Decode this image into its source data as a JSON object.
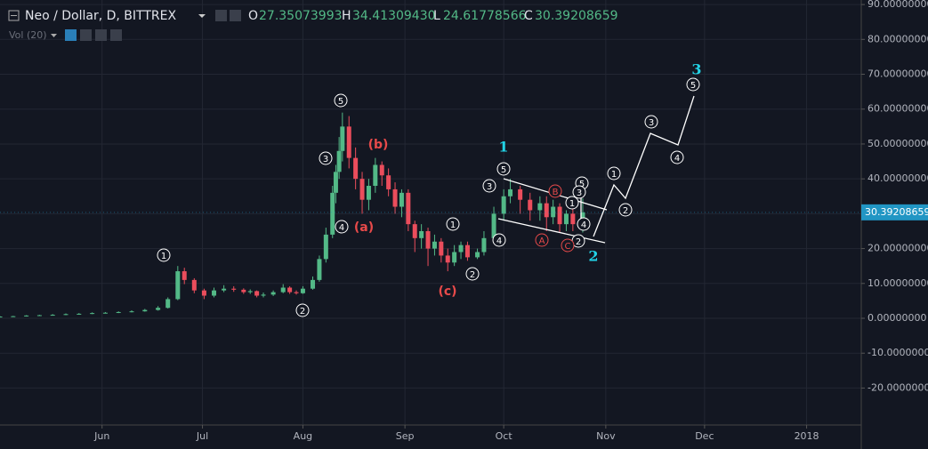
{
  "header": {
    "symbol": "Neo / Dollar, D, BITTREX",
    "o_label": "O",
    "o_value": "27.35073993",
    "h_label": "H",
    "h_value": "34.41309430",
    "l_label": "L",
    "l_value": "24.61778566",
    "c_label": "C",
    "c_value": "30.39208659",
    "volume": "Vol (20)"
  },
  "chart_data": {
    "type": "candlestick",
    "x": [
      0,
      4,
      8,
      12,
      16,
      20,
      24,
      28,
      32,
      36,
      40,
      44,
      48,
      51,
      54,
      56,
      59,
      62,
      65,
      68,
      71,
      74,
      76,
      78,
      80,
      83,
      86,
      88,
      90,
      92,
      95,
      97,
      99,
      101,
      102,
      103,
      104,
      106,
      108,
      110,
      112,
      114,
      116,
      118,
      120,
      122,
      124,
      126,
      128,
      130,
      132,
      134,
      136,
      138,
      140,
      142,
      145,
      147,
      150,
      153,
      155,
      158,
      161,
      164,
      166,
      168,
      170,
      172,
      174,
      177
    ],
    "open": [
      0.4,
      0.5,
      0.6,
      0.8,
      0.9,
      1.0,
      1.2,
      1.3,
      1.5,
      1.6,
      1.8,
      2.0,
      2.4,
      3.0,
      5.5,
      13.5,
      11,
      8,
      6.5,
      8,
      8.5,
      8.2,
      7.5,
      7.8,
      6.5,
      6.8,
      7.5,
      8.8,
      7.5,
      7.2,
      8.5,
      11,
      17,
      24,
      36,
      42,
      48,
      55,
      46,
      40,
      34,
      38,
      44,
      41,
      37,
      32,
      36,
      27,
      23,
      25,
      20,
      22,
      18,
      16,
      19,
      21,
      17.5,
      19,
      23,
      30,
      35,
      37,
      34,
      31,
      33,
      29,
      32,
      27,
      30,
      27.35073993
    ],
    "high": [
      0.6,
      0.7,
      0.9,
      1.0,
      1.2,
      1.4,
      1.5,
      1.7,
      1.8,
      2.0,
      2.3,
      2.7,
      3.5,
      6.0,
      15,
      14.5,
      11.5,
      8.5,
      8.8,
      9.5,
      9.2,
      8.6,
      8.3,
      8,
      7.4,
      8,
      9.8,
      9.2,
      8,
      9.2,
      12,
      18,
      26,
      38,
      44,
      52,
      59,
      58,
      49,
      42,
      40,
      46,
      45,
      43,
      39,
      37,
      37,
      28,
      27,
      26,
      24,
      23,
      20,
      21,
      22,
      22,
      20,
      25,
      32,
      37,
      40,
      38,
      36,
      35,
      35,
      34,
      33,
      31,
      32,
      34.4130943
    ],
    "low": [
      0.3,
      0.4,
      0.5,
      0.7,
      0.8,
      0.9,
      1.1,
      1.2,
      1.4,
      1.5,
      1.7,
      1.9,
      2.2,
      2.8,
      5.2,
      9.8,
      7.2,
      5.5,
      6,
      7.5,
      7.6,
      7,
      7,
      6,
      6,
      6.4,
      7.2,
      7,
      6.8,
      7,
      8.2,
      10.5,
      16,
      23,
      33,
      40,
      45,
      43,
      37,
      30,
      31,
      36,
      38,
      35,
      30,
      29,
      25,
      19,
      20,
      15,
      18,
      16,
      13.5,
      15,
      17,
      16.5,
      17,
      18,
      22,
      28,
      33,
      30,
      28,
      28,
      25,
      27,
      24.6,
      25,
      25,
      24.61778566
    ],
    "close": [
      0.5,
      0.6,
      0.8,
      0.9,
      1.0,
      1.2,
      1.3,
      1.5,
      1.6,
      1.8,
      2.0,
      2.4,
      3.0,
      5.5,
      13.5,
      11,
      8,
      6.5,
      8,
      8.5,
      8.2,
      7.5,
      7.8,
      6.5,
      6.8,
      7.5,
      8.8,
      7.5,
      7.2,
      8.5,
      11,
      17,
      24,
      36,
      42,
      48,
      55,
      46,
      40,
      34,
      38,
      44,
      41,
      37,
      32,
      36,
      27,
      23,
      25,
      20,
      22,
      18,
      16,
      19,
      21,
      17.5,
      19,
      23,
      30,
      35,
      37,
      34,
      31,
      33,
      29,
      32,
      27,
      30,
      27,
      30.39208659
    ],
    "up_color": "#53b987",
    "down_color": "#eb4d5c",
    "xlim": [
      0,
      261.6
    ],
    "xticks": [
      {
        "value": 31,
        "label": "Jun"
      },
      {
        "value": 61.5,
        "label": "Jul"
      },
      {
        "value": 92,
        "label": "Aug"
      },
      {
        "value": 123,
        "label": "Sep"
      },
      {
        "value": 153,
        "label": "Oct"
      },
      {
        "value": 184,
        "label": "Nov"
      },
      {
        "value": 214,
        "label": "Dec"
      },
      {
        "value": 245,
        "label": "2018"
      }
    ],
    "ylim": [
      -30.6,
      91.3
    ],
    "yticks": [
      {
        "value": -20,
        "label": "-20.00000000"
      },
      {
        "value": -10,
        "label": "-10.00000000"
      },
      {
        "value": 0,
        "label": "0.00000000"
      },
      {
        "value": 10,
        "label": "10.00000000"
      },
      {
        "value": 20,
        "label": "20.00000000"
      },
      {
        "value": 30,
        "label": "30.00000000"
      },
      {
        "value": 40,
        "label": "40.00000000"
      },
      {
        "value": 50,
        "label": "50.00000000"
      },
      {
        "value": 60,
        "label": "60.00000000"
      },
      {
        "value": 70,
        "label": "70.00000000"
      },
      {
        "value": 80,
        "label": "80.00000000"
      },
      {
        "value": 90,
        "label": "90.00000000"
      }
    ],
    "grid": true,
    "last_price": {
      "value": 30.39208659,
      "label": "30.39208659"
    },
    "annotations": [
      {
        "text": "1",
        "style": "circle",
        "color": "#ffffff"
      },
      {
        "text": "2",
        "style": "circle",
        "color": "#ffffff"
      },
      {
        "text": "3",
        "style": "circle",
        "color": "#ffffff"
      },
      {
        "text": "5",
        "style": "circle",
        "color": "#ffffff"
      },
      {
        "text": "4",
        "style": "circle",
        "color": "#ffffff"
      },
      {
        "text": "1",
        "style": "circle",
        "color": "#ffffff"
      },
      {
        "text": "2",
        "style": "circle",
        "color": "#ffffff"
      },
      {
        "text": "3",
        "style": "circle",
        "color": "#ffffff"
      },
      {
        "text": "5",
        "style": "circle",
        "color": "#ffffff"
      },
      {
        "text": "4",
        "style": "circle",
        "color": "#ffffff"
      },
      {
        "text": "1",
        "style": "circle",
        "color": "#ffffff"
      },
      {
        "text": "5",
        "style": "circle",
        "color": "#ffffff"
      },
      {
        "text": "3",
        "style": "circle",
        "color": "#ffffff"
      },
      {
        "text": "4",
        "style": "circle",
        "color": "#ffffff"
      },
      {
        "text": "2",
        "style": "circle",
        "color": "#ffffff"
      },
      {
        "text": "1",
        "style": "circle",
        "color": "#ffffff"
      },
      {
        "text": "2",
        "style": "circle",
        "color": "#ffffff"
      },
      {
        "text": "3",
        "style": "circle",
        "color": "#ffffff"
      },
      {
        "text": "4",
        "style": "circle",
        "color": "#ffffff"
      },
      {
        "text": "5",
        "style": "circle",
        "color": "#ffffff"
      },
      {
        "text": "(b)",
        "style": "plain",
        "color": "#e84a4a"
      },
      {
        "text": "(a)",
        "style": "plain",
        "color": "#e84a4a"
      },
      {
        "text": "(c)",
        "style": "plain",
        "color": "#e84a4a"
      },
      {
        "text": "B",
        "style": "circle",
        "color": "#e84a4a"
      },
      {
        "text": "A",
        "style": "circle",
        "color": "#e84a4a"
      },
      {
        "text": "C",
        "style": "circle",
        "color": "#e84a4a"
      },
      {
        "text": "1",
        "style": "wave",
        "color": "#22d3e6"
      },
      {
        "text": "2",
        "style": "wave",
        "color": "#22d3e6"
      },
      {
        "text": "3",
        "style": "wave",
        "color": "#22d3e6"
      }
    ]
  }
}
